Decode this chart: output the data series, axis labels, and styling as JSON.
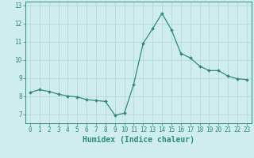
{
  "x": [
    0,
    1,
    2,
    3,
    4,
    5,
    6,
    7,
    8,
    9,
    10,
    11,
    12,
    13,
    14,
    15,
    16,
    17,
    18,
    19,
    20,
    21,
    22,
    23
  ],
  "y": [
    8.2,
    8.35,
    8.25,
    8.1,
    8.0,
    7.95,
    7.8,
    7.75,
    7.7,
    6.95,
    7.05,
    8.65,
    10.9,
    11.7,
    12.55,
    11.65,
    10.35,
    10.1,
    9.65,
    9.4,
    9.4,
    9.1,
    8.95,
    8.9
  ],
  "line_color": "#2e8b7a",
  "marker": "D",
  "marker_size": 2.0,
  "bg_color": "#d0eded",
  "grid_color": "#b8d8d8",
  "tick_color": "#2e8b7a",
  "xlabel": "Humidex (Indice chaleur)",
  "xlabel_fontsize": 7,
  "xlim": [
    -0.5,
    23.5
  ],
  "ylim": [
    6.5,
    13.2
  ],
  "yticks": [
    7,
    8,
    9,
    10,
    11,
    12,
    13
  ],
  "xticks": [
    0,
    1,
    2,
    3,
    4,
    5,
    6,
    7,
    8,
    9,
    10,
    11,
    12,
    13,
    14,
    15,
    16,
    17,
    18,
    19,
    20,
    21,
    22,
    23
  ],
  "tick_fontsize": 5.5,
  "linewidth": 0.9
}
